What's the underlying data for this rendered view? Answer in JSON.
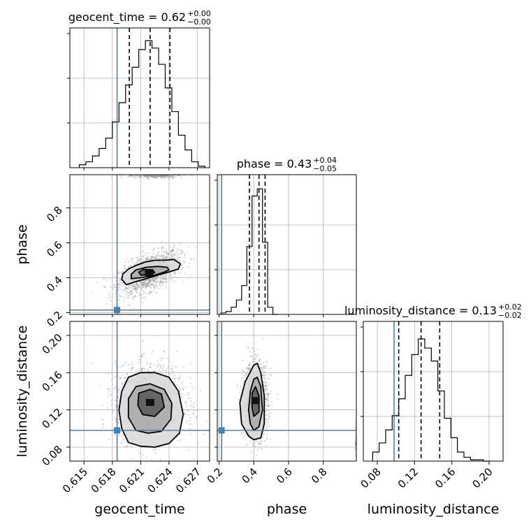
{
  "chart_data": {
    "type": "corner",
    "parameters": [
      "geocent_time",
      "phase",
      "luminosity_distance"
    ],
    "truth_color": "#4682b4",
    "titles": [
      {
        "param": "geocent_time",
        "label": "geocent_time = 0.62",
        "plus": "+0.00",
        "minus": "−0.00"
      },
      {
        "param": "phase",
        "label": "phase = 0.43",
        "plus": "+0.04",
        "minus": "−0.05"
      },
      {
        "param": "luminosity_distance",
        "label": "luminosity_distance = 0.13",
        "plus": "+0.02",
        "minus": "−0.02"
      }
    ],
    "axes": {
      "geocent_time": {
        "range": [
          0.6135,
          0.6283
        ],
        "ticks": [
          0.615,
          0.618,
          0.621,
          0.624,
          0.627
        ],
        "tick_labels": [
          "0.615",
          "0.618",
          "0.621",
          "0.624",
          "0.627"
        ]
      },
      "phase": {
        "range": [
          0.19,
          0.99
        ],
        "ticks": [
          0.2,
          0.4,
          0.6,
          0.8
        ],
        "tick_labels": [
          "0.2",
          "0.4",
          "0.6",
          "0.8"
        ]
      },
      "luminosity_distance": {
        "range": [
          0.065,
          0.215
        ],
        "ticks": [
          0.08,
          0.12,
          0.16,
          0.2
        ],
        "tick_labels": [
          "0.08",
          "0.12",
          "0.16",
          "0.20"
        ]
      }
    },
    "truths": {
      "geocent_time": 0.6185,
      "phase": 0.215,
      "luminosity_distance": 0.098
    },
    "quantiles": {
      "geocent_time": [
        0.6198,
        0.622,
        0.6241
      ],
      "phase": [
        0.375,
        0.43,
        0.465
      ],
      "luminosity_distance": [
        0.103,
        0.127,
        0.147
      ]
    },
    "hist_geocent_time": {
      "edges": [
        0.6145,
        0.6152,
        0.6159,
        0.6166,
        0.6173,
        0.618,
        0.6187,
        0.6194,
        0.6201,
        0.6208,
        0.6215,
        0.6222,
        0.6229,
        0.6236,
        0.6243,
        0.625,
        0.6257,
        0.6264,
        0.6271,
        0.6278
      ],
      "counts": [
        2,
        4,
        8,
        13,
        20,
        31,
        44,
        56,
        68,
        80,
        86,
        81,
        70,
        54,
        38,
        22,
        12,
        4,
        1
      ],
      "max": 88
    },
    "hist_phase": {
      "edges": [
        0.21,
        0.24,
        0.27,
        0.3,
        0.33,
        0.36,
        0.39,
        0.42,
        0.45,
        0.48,
        0.51,
        0.54
      ],
      "counts": [
        1,
        2,
        5,
        10,
        20,
        47,
        82,
        87,
        50,
        5,
        0
      ],
      "max": 90
    },
    "hist_luminosity_distance": {
      "edges": [
        0.075,
        0.082,
        0.089,
        0.096,
        0.103,
        0.11,
        0.117,
        0.124,
        0.131,
        0.138,
        0.145,
        0.152,
        0.159,
        0.166,
        0.173,
        0.18,
        0.187,
        0.194,
        0.201
      ],
      "counts": [
        7,
        14,
        24,
        35,
        48,
        66,
        82,
        94,
        87,
        77,
        54,
        33,
        18,
        7,
        3,
        1,
        1,
        0
      ],
      "max": 100
    },
    "contours_phase_vs_geocent_time": [
      {
        "level": "outer",
        "x": [
          0.6195,
          0.6203,
          0.6213,
          0.6225,
          0.6238,
          0.625,
          0.6252,
          0.6245,
          0.6235,
          0.6225,
          0.6215,
          0.6205,
          0.6197,
          0.6191,
          0.619,
          0.6195
        ],
        "y": [
          0.36,
          0.375,
          0.39,
          0.41,
          0.43,
          0.45,
          0.48,
          0.505,
          0.5,
          0.5,
          0.49,
          0.47,
          0.45,
          0.42,
          0.39,
          0.36
        ]
      },
      {
        "level": "middle",
        "x": [
          0.62,
          0.621,
          0.6222,
          0.6234,
          0.624,
          0.6238,
          0.6228,
          0.6216,
          0.6205,
          0.62,
          0.62
        ],
        "y": [
          0.395,
          0.4,
          0.41,
          0.43,
          0.445,
          0.46,
          0.465,
          0.46,
          0.445,
          0.42,
          0.395
        ]
      },
      {
        "level": "inner",
        "x": [
          0.621,
          0.622,
          0.6225,
          0.6222,
          0.6213,
          0.6208,
          0.621
        ],
        "y": [
          0.415,
          0.418,
          0.43,
          0.445,
          0.448,
          0.432,
          0.415
        ]
      }
    ],
    "contours_luminosity_distance_vs_geocent_time": [
      {
        "level": "outer",
        "x": [
          0.6197,
          0.621,
          0.6225,
          0.624,
          0.6251,
          0.6255,
          0.625,
          0.624,
          0.6225,
          0.621,
          0.6197,
          0.619,
          0.6187,
          0.619,
          0.6197
        ],
        "y": [
          0.085,
          0.081,
          0.08,
          0.084,
          0.095,
          0.115,
          0.14,
          0.155,
          0.16,
          0.16,
          0.155,
          0.14,
          0.12,
          0.1,
          0.085
        ]
      },
      {
        "level": "middle",
        "x": [
          0.6205,
          0.6218,
          0.6232,
          0.6242,
          0.6243,
          0.6235,
          0.622,
          0.6205,
          0.6197,
          0.6197,
          0.6205
        ],
        "y": [
          0.098,
          0.095,
          0.097,
          0.11,
          0.127,
          0.142,
          0.148,
          0.145,
          0.132,
          0.112,
          0.098
        ]
      },
      {
        "level": "inner",
        "x": [
          0.6212,
          0.6225,
          0.6235,
          0.6232,
          0.622,
          0.6208,
          0.6207,
          0.6212
        ],
        "y": [
          0.115,
          0.113,
          0.123,
          0.137,
          0.142,
          0.138,
          0.125,
          0.115
        ]
      }
    ],
    "contours_luminosity_distance_vs_phase": [
      {
        "level": "outer",
        "x": [
          0.4,
          0.44,
          0.46,
          0.46,
          0.44,
          0.42,
          0.4,
          0.35,
          0.32,
          0.33,
          0.37,
          0.4
        ],
        "y": [
          0.088,
          0.09,
          0.105,
          0.135,
          0.16,
          0.17,
          0.168,
          0.15,
          0.128,
          0.105,
          0.092,
          0.088
        ]
      },
      {
        "level": "middle",
        "x": [
          0.4,
          0.43,
          0.45,
          0.44,
          0.42,
          0.4,
          0.38,
          0.37,
          0.38,
          0.4
        ],
        "y": [
          0.098,
          0.102,
          0.12,
          0.145,
          0.155,
          0.153,
          0.14,
          0.12,
          0.105,
          0.098
        ]
      },
      {
        "level": "inner",
        "x": [
          0.4,
          0.43,
          0.43,
          0.41,
          0.39,
          0.39,
          0.4
        ],
        "y": [
          0.113,
          0.118,
          0.135,
          0.145,
          0.138,
          0.122,
          0.113
        ]
      }
    ],
    "density_core_phase_vs_geocent_time": {
      "x": 0.6219,
      "y": 0.43
    },
    "density_core_luminosity_distance_vs_geocent_time": {
      "x": 0.622,
      "y": 0.128
    },
    "density_core_luminosity_distance_vs_phase": {
      "x": 0.41,
      "y": 0.13
    }
  }
}
